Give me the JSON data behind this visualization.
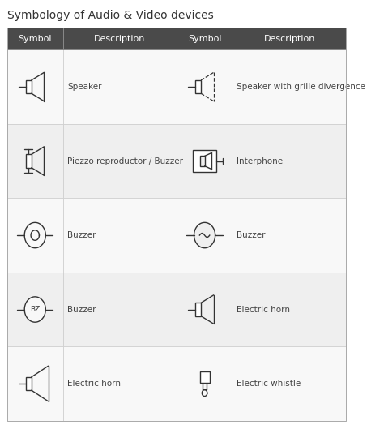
{
  "title": "Symbology of Audio & Video devices",
  "header_bg": "#4a4a4a",
  "header_fg": "#ffffff",
  "title_fontsize": 10,
  "header_fontsize": 8,
  "label_fontsize": 7.5,
  "columns": [
    "Symbol",
    "Description",
    "Symbol",
    "Description"
  ],
  "rows": [
    [
      "Speaker",
      "Speaker with grille divergence"
    ],
    [
      "Piezzo reproductor / Buzzer",
      "Interphone"
    ],
    [
      "Buzzer",
      "Buzzer"
    ],
    [
      "Buzzer",
      "Electric horn"
    ],
    [
      "Electric horn",
      "Electric whistle"
    ]
  ]
}
